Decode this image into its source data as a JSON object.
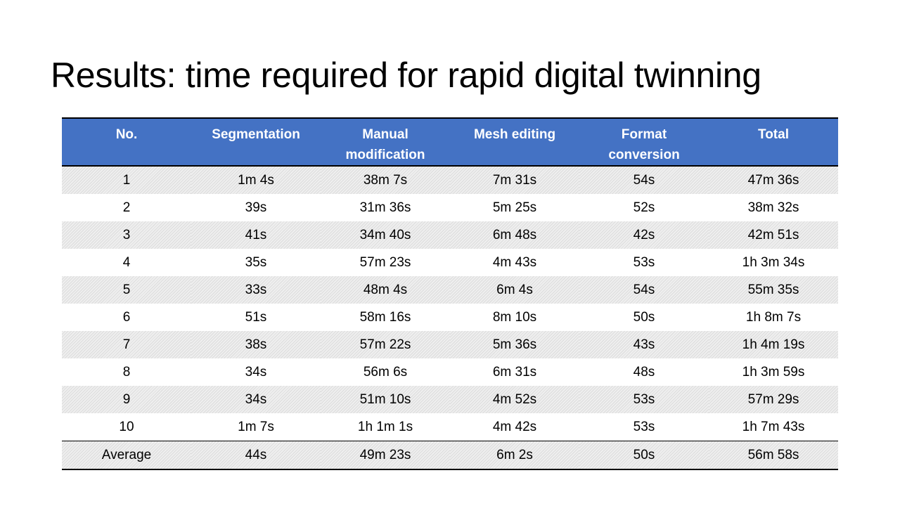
{
  "slide": {
    "title": "Results: time required for rapid digital twinning"
  },
  "table": {
    "headers": [
      "No.",
      "Segmentation",
      "Manual\nmodification",
      "Mesh editing",
      "Format\nconversion",
      "Total"
    ],
    "header_color": "#4472c4",
    "rows": [
      [
        "1",
        "1m 4s",
        "38m 7s",
        "7m 31s",
        "54s",
        "47m 36s"
      ],
      [
        "2",
        "39s",
        "31m 36s",
        "5m 25s",
        "52s",
        "38m 32s"
      ],
      [
        "3",
        "41s",
        "34m 40s",
        "6m 48s",
        "42s",
        "42m 51s"
      ],
      [
        "4",
        "35s",
        "57m 23s",
        "4m 43s",
        "53s",
        "1h 3m 34s"
      ],
      [
        "5",
        "33s",
        "48m 4s",
        "6m 4s",
        "54s",
        "55m 35s"
      ],
      [
        "6",
        "51s",
        "58m 16s",
        "8m 10s",
        "50s",
        "1h 8m 7s"
      ],
      [
        "7",
        "38s",
        "57m 22s",
        "5m 36s",
        "43s",
        "1h 4m 19s"
      ],
      [
        "8",
        "34s",
        "56m 6s",
        "6m 31s",
        "48s",
        "1h 3m 59s"
      ],
      [
        "9",
        "34s",
        "51m 10s",
        "4m 52s",
        "53s",
        "57m 29s"
      ],
      [
        "10",
        "1m 7s",
        "1h 1m 1s",
        "4m 42s",
        "53s",
        "1h 7m 43s"
      ]
    ],
    "average": [
      "Average",
      "44s",
      "49m 23s",
      "6m 2s",
      "50s",
      "56m 58s"
    ]
  }
}
